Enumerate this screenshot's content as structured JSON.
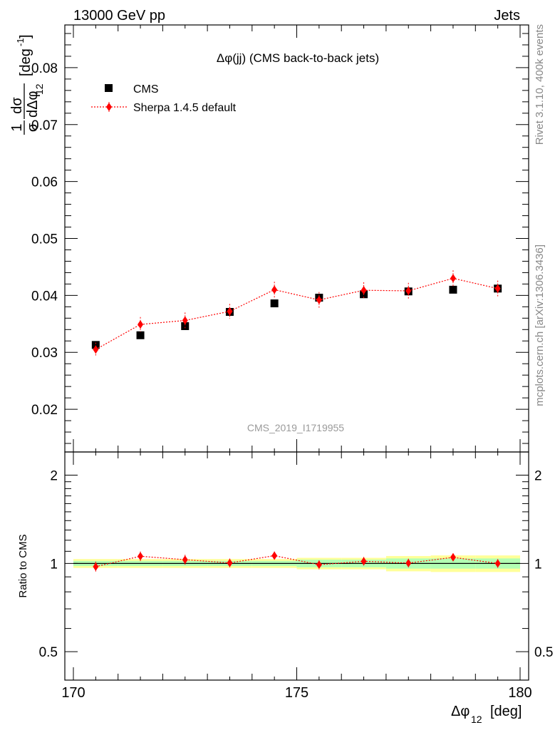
{
  "header": {
    "left": "13000 GeV pp",
    "right": "Jets",
    "side_top": "Rivet 3.1.10,  400k events",
    "side_bottom": "mcplots.cern.ch [arXiv:1306.3436]",
    "watermark": "CMS_2019_I1719955"
  },
  "chart_data": [
    {
      "panel": "main",
      "type": "scatter",
      "title": "Δφ(jj) (CMS back-to-back jets)",
      "xlim": [
        170,
        180
      ],
      "ylim": [
        0.0125,
        0.0875
      ],
      "ylabel_parts": {
        "frac_num": "1",
        "frac_den": "σ",
        "d_num": "dσ",
        "d_den": "dΔφ",
        "d_den_sub": "12",
        "unit": "[deg",
        "unit_sup": "-1",
        "unit_close": "]"
      },
      "yticks": [
        0.02,
        0.03,
        0.04,
        0.05,
        0.06,
        0.07,
        0.08
      ],
      "ytick_labels": [
        "0.02",
        "0.03",
        "0.04",
        "0.05",
        "0.06",
        "0.07",
        "0.08"
      ],
      "x": [
        170.5,
        171.5,
        172.5,
        173.5,
        174.5,
        175.5,
        176.5,
        177.5,
        178.5,
        179.5
      ],
      "legend": [
        "CMS",
        "Sherpa 1.4.5 default"
      ],
      "legend_position": "top-left",
      "series": [
        {
          "name": "CMS",
          "marker": "square",
          "color": "#000000",
          "values": [
            0.0313,
            0.033,
            0.0346,
            0.0371,
            0.0386,
            0.0396,
            0.0402,
            0.0407,
            0.041,
            0.0412
          ],
          "errors": [
            0.0004,
            0.0004,
            0.0004,
            0.0004,
            0.0004,
            0.0004,
            0.0004,
            0.0004,
            0.0004,
            0.0004
          ]
        },
        {
          "name": "Sherpa 1.4.5 default",
          "marker": "diamond",
          "line": "dotted",
          "color": "#ff0000",
          "values": [
            0.0305,
            0.0349,
            0.0356,
            0.0372,
            0.041,
            0.0392,
            0.0409,
            0.0408,
            0.043,
            0.0412
          ],
          "errors": [
            0.0012,
            0.0013,
            0.0014,
            0.0013,
            0.0014,
            0.0014,
            0.0014,
            0.0014,
            0.0014,
            0.0014
          ]
        }
      ]
    },
    {
      "panel": "ratio",
      "type": "scatter",
      "ylabel": "Ratio to CMS",
      "ylim": [
        0.4,
        2.4
      ],
      "log_y": true,
      "yticks": [
        0.5,
        1,
        2
      ],
      "ytick_labels": [
        "0.5",
        "1",
        "2"
      ],
      "xlim": [
        170,
        180
      ],
      "xticks": [
        170,
        175,
        180
      ],
      "xtick_labels": [
        "170",
        "175",
        "180"
      ],
      "xlabel": "Δφ",
      "xlabel_sub": "12",
      "xlabel_unit": "[deg]",
      "band_colors": {
        "inner": "#b3ffb3",
        "outer": "#ffff99",
        "reference": "#000000"
      },
      "x": [
        170.5,
        171.5,
        172.5,
        173.5,
        174.5,
        175.5,
        176.5,
        177.5,
        178.5,
        179.5
      ],
      "band_inner": [
        0.02,
        0.02,
        0.02,
        0.02,
        0.02,
        0.03,
        0.03,
        0.04,
        0.04,
        0.04
      ],
      "band_outer": [
        0.035,
        0.035,
        0.035,
        0.035,
        0.035,
        0.045,
        0.045,
        0.06,
        0.065,
        0.065
      ],
      "series": [
        {
          "name": "Sherpa 1.4.5 default",
          "marker": "diamond",
          "line": "dotted",
          "color": "#ff0000",
          "values": [
            0.975,
            1.058,
            1.03,
            1.004,
            1.063,
            0.99,
            1.017,
            1.003,
            1.049,
            1.0
          ],
          "errors": [
            0.04,
            0.04,
            0.04,
            0.035,
            0.035,
            0.035,
            0.035,
            0.035,
            0.035,
            0.035
          ]
        }
      ]
    }
  ]
}
